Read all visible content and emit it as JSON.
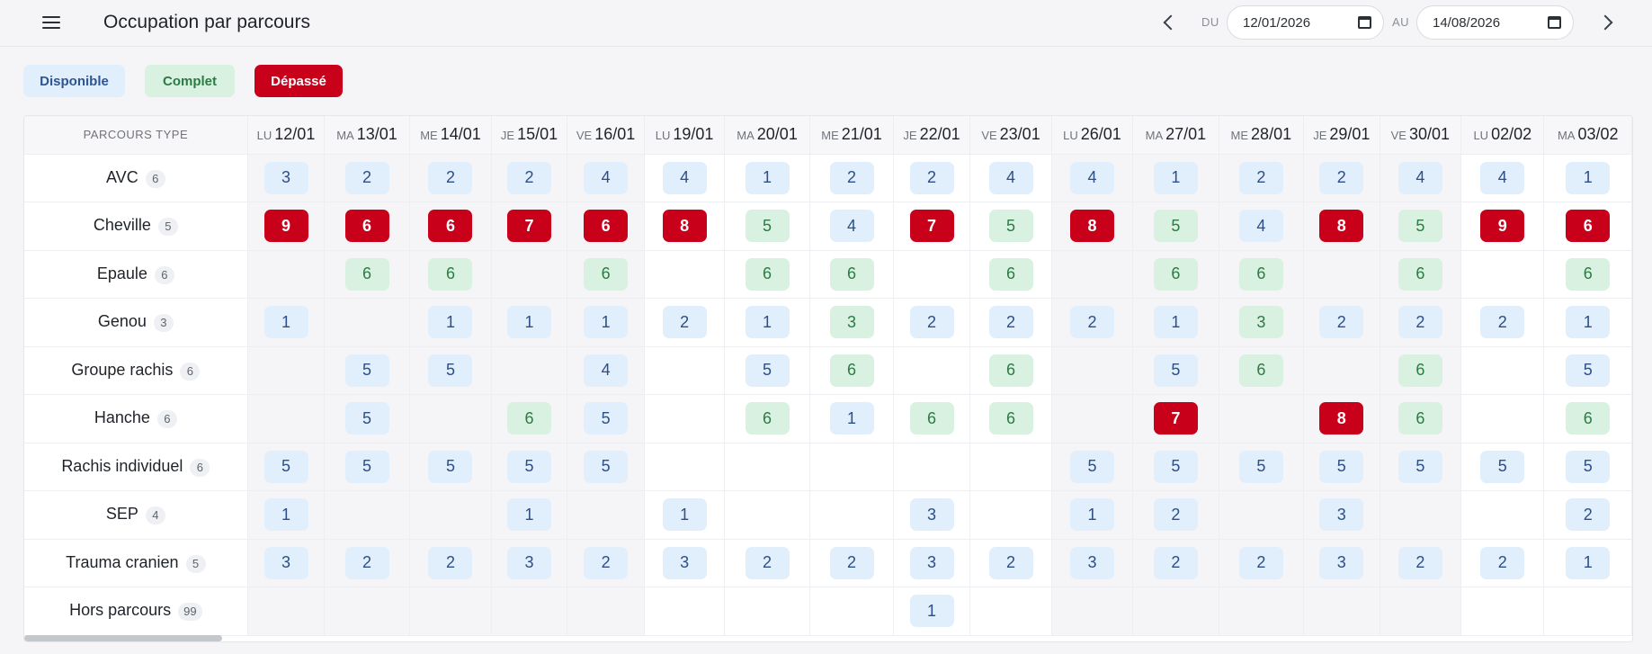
{
  "header": {
    "title": "Occupation par parcours",
    "du_label": "DU",
    "au_label": "AU",
    "date_from": "12/01/2026",
    "date_to": "14/08/2026"
  },
  "legend": {
    "disponible": "Disponible",
    "complet": "Complet",
    "depasse": "Dépassé"
  },
  "colors": {
    "disponible_bg": "#e1effc",
    "complet_bg": "#d9f1e1",
    "depasse_bg": "#c8001a"
  },
  "table": {
    "type_header": "PARCOURS TYPE",
    "days": [
      {
        "dow": "LU",
        "date": "12/01"
      },
      {
        "dow": "MA",
        "date": "13/01"
      },
      {
        "dow": "ME",
        "date": "14/01"
      },
      {
        "dow": "JE",
        "date": "15/01"
      },
      {
        "dow": "VE",
        "date": "16/01"
      },
      {
        "dow": "LU",
        "date": "19/01"
      },
      {
        "dow": "MA",
        "date": "20/01"
      },
      {
        "dow": "ME",
        "date": "21/01"
      },
      {
        "dow": "JE",
        "date": "22/01"
      },
      {
        "dow": "VE",
        "date": "23/01"
      },
      {
        "dow": "LU",
        "date": "26/01"
      },
      {
        "dow": "MA",
        "date": "27/01"
      },
      {
        "dow": "ME",
        "date": "28/01"
      },
      {
        "dow": "JE",
        "date": "29/01"
      },
      {
        "dow": "VE",
        "date": "30/01"
      },
      {
        "dow": "LU",
        "date": "02/02"
      },
      {
        "dow": "MA",
        "date": "03/02"
      }
    ],
    "rows": [
      {
        "name": "AVC",
        "count": "6",
        "cells": [
          {
            "v": "3",
            "s": "d"
          },
          {
            "v": "2",
            "s": "d"
          },
          {
            "v": "2",
            "s": "d"
          },
          {
            "v": "2",
            "s": "d"
          },
          {
            "v": "4",
            "s": "d"
          },
          {
            "v": "4",
            "s": "d"
          },
          {
            "v": "1",
            "s": "d"
          },
          {
            "v": "2",
            "s": "d"
          },
          {
            "v": "2",
            "s": "d"
          },
          {
            "v": "4",
            "s": "d"
          },
          {
            "v": "4",
            "s": "d"
          },
          {
            "v": "1",
            "s": "d"
          },
          {
            "v": "2",
            "s": "d"
          },
          {
            "v": "2",
            "s": "d"
          },
          {
            "v": "4",
            "s": "d"
          },
          {
            "v": "4",
            "s": "d"
          },
          {
            "v": "1",
            "s": "d"
          }
        ]
      },
      {
        "name": "Cheville",
        "count": "5",
        "cells": [
          {
            "v": "9",
            "s": "x"
          },
          {
            "v": "6",
            "s": "x"
          },
          {
            "v": "6",
            "s": "x"
          },
          {
            "v": "7",
            "s": "x"
          },
          {
            "v": "6",
            "s": "x"
          },
          {
            "v": "8",
            "s": "x"
          },
          {
            "v": "5",
            "s": "c"
          },
          {
            "v": "4",
            "s": "d"
          },
          {
            "v": "7",
            "s": "x"
          },
          {
            "v": "5",
            "s": "c"
          },
          {
            "v": "8",
            "s": "x"
          },
          {
            "v": "5",
            "s": "c"
          },
          {
            "v": "4",
            "s": "d"
          },
          {
            "v": "8",
            "s": "x"
          },
          {
            "v": "5",
            "s": "c"
          },
          {
            "v": "9",
            "s": "x"
          },
          {
            "v": "6",
            "s": "x"
          }
        ]
      },
      {
        "name": "Epaule",
        "count": "6",
        "cells": [
          null,
          {
            "v": "6",
            "s": "c"
          },
          {
            "v": "6",
            "s": "c"
          },
          null,
          {
            "v": "6",
            "s": "c"
          },
          null,
          {
            "v": "6",
            "s": "c"
          },
          {
            "v": "6",
            "s": "c"
          },
          null,
          {
            "v": "6",
            "s": "c"
          },
          null,
          {
            "v": "6",
            "s": "c"
          },
          {
            "v": "6",
            "s": "c"
          },
          null,
          {
            "v": "6",
            "s": "c"
          },
          null,
          {
            "v": "6",
            "s": "c"
          }
        ]
      },
      {
        "name": "Genou",
        "count": "3",
        "cells": [
          {
            "v": "1",
            "s": "d"
          },
          null,
          {
            "v": "1",
            "s": "d"
          },
          {
            "v": "1",
            "s": "d"
          },
          {
            "v": "1",
            "s": "d"
          },
          {
            "v": "2",
            "s": "d"
          },
          {
            "v": "1",
            "s": "d"
          },
          {
            "v": "3",
            "s": "c"
          },
          {
            "v": "2",
            "s": "d"
          },
          {
            "v": "2",
            "s": "d"
          },
          {
            "v": "2",
            "s": "d"
          },
          {
            "v": "1",
            "s": "d"
          },
          {
            "v": "3",
            "s": "c"
          },
          {
            "v": "2",
            "s": "d"
          },
          {
            "v": "2",
            "s": "d"
          },
          {
            "v": "2",
            "s": "d"
          },
          {
            "v": "1",
            "s": "d"
          }
        ]
      },
      {
        "name": "Groupe rachis",
        "count": "6",
        "cells": [
          null,
          {
            "v": "5",
            "s": "d"
          },
          {
            "v": "5",
            "s": "d"
          },
          null,
          {
            "v": "4",
            "s": "d"
          },
          null,
          {
            "v": "5",
            "s": "d"
          },
          {
            "v": "6",
            "s": "c"
          },
          null,
          {
            "v": "6",
            "s": "c"
          },
          null,
          {
            "v": "5",
            "s": "d"
          },
          {
            "v": "6",
            "s": "c"
          },
          null,
          {
            "v": "6",
            "s": "c"
          },
          null,
          {
            "v": "5",
            "s": "d"
          }
        ]
      },
      {
        "name": "Hanche",
        "count": "6",
        "cells": [
          null,
          {
            "v": "5",
            "s": "d"
          },
          null,
          {
            "v": "6",
            "s": "c"
          },
          {
            "v": "5",
            "s": "d"
          },
          null,
          {
            "v": "6",
            "s": "c"
          },
          {
            "v": "1",
            "s": "d"
          },
          {
            "v": "6",
            "s": "c"
          },
          {
            "v": "6",
            "s": "c"
          },
          null,
          {
            "v": "7",
            "s": "x"
          },
          null,
          {
            "v": "8",
            "s": "x"
          },
          {
            "v": "6",
            "s": "c"
          },
          null,
          {
            "v": "6",
            "s": "c"
          }
        ]
      },
      {
        "name": "Rachis individuel",
        "count": "6",
        "cells": [
          {
            "v": "5",
            "s": "d"
          },
          {
            "v": "5",
            "s": "d"
          },
          {
            "v": "5",
            "s": "d"
          },
          {
            "v": "5",
            "s": "d"
          },
          {
            "v": "5",
            "s": "d"
          },
          null,
          null,
          null,
          null,
          null,
          {
            "v": "5",
            "s": "d"
          },
          {
            "v": "5",
            "s": "d"
          },
          {
            "v": "5",
            "s": "d"
          },
          {
            "v": "5",
            "s": "d"
          },
          {
            "v": "5",
            "s": "d"
          },
          {
            "v": "5",
            "s": "d"
          },
          {
            "v": "5",
            "s": "d"
          }
        ]
      },
      {
        "name": "SEP",
        "count": "4",
        "cells": [
          {
            "v": "1",
            "s": "d"
          },
          null,
          null,
          {
            "v": "1",
            "s": "d"
          },
          null,
          {
            "v": "1",
            "s": "d"
          },
          null,
          null,
          {
            "v": "3",
            "s": "d"
          },
          null,
          {
            "v": "1",
            "s": "d"
          },
          {
            "v": "2",
            "s": "d"
          },
          null,
          {
            "v": "3",
            "s": "d"
          },
          null,
          null,
          {
            "v": "2",
            "s": "d"
          }
        ]
      },
      {
        "name": "Trauma cranien",
        "count": "5",
        "cells": [
          {
            "v": "3",
            "s": "d"
          },
          {
            "v": "2",
            "s": "d"
          },
          {
            "v": "2",
            "s": "d"
          },
          {
            "v": "3",
            "s": "d"
          },
          {
            "v": "2",
            "s": "d"
          },
          {
            "v": "3",
            "s": "d"
          },
          {
            "v": "2",
            "s": "d"
          },
          {
            "v": "2",
            "s": "d"
          },
          {
            "v": "3",
            "s": "d"
          },
          {
            "v": "2",
            "s": "d"
          },
          {
            "v": "3",
            "s": "d"
          },
          {
            "v": "2",
            "s": "d"
          },
          {
            "v": "2",
            "s": "d"
          },
          {
            "v": "3",
            "s": "d"
          },
          {
            "v": "2",
            "s": "d"
          },
          {
            "v": "2",
            "s": "d"
          },
          {
            "v": "1",
            "s": "d"
          }
        ]
      },
      {
        "name": "Hors parcours",
        "count": "99",
        "cells": [
          null,
          null,
          null,
          null,
          null,
          null,
          null,
          null,
          {
            "v": "1",
            "s": "d"
          },
          null,
          null,
          null,
          null,
          null,
          null,
          null,
          null
        ]
      }
    ]
  }
}
